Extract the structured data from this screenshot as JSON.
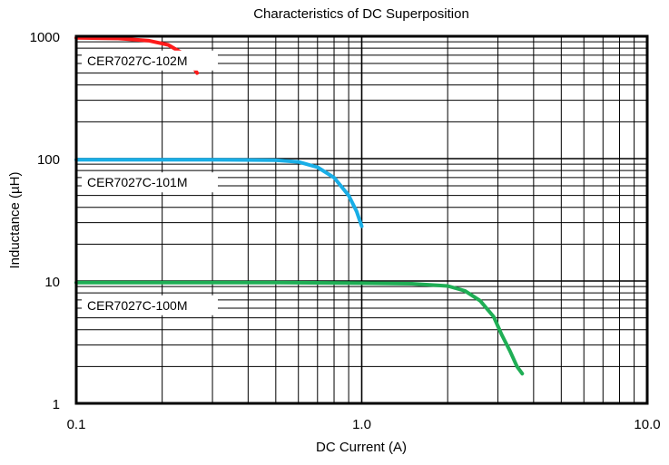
{
  "chart_data": {
    "type": "line",
    "title": "Characteristics of DC Superposition",
    "xlabel": "DC Current (A)",
    "ylabel": "Inductance (µH)",
    "x_scale": "log",
    "y_scale": "log",
    "xlim": [
      0.1,
      10.0
    ],
    "ylim": [
      1,
      1000
    ],
    "x_ticks": [
      {
        "value": 0.1,
        "label": "0.1"
      },
      {
        "value": 1.0,
        "label": "1.0"
      },
      {
        "value": 10.0,
        "label": "10.0"
      }
    ],
    "y_ticks": [
      {
        "value": 1,
        "label": "1"
      },
      {
        "value": 10,
        "label": "10"
      },
      {
        "value": 100,
        "label": "100"
      },
      {
        "value": 1000,
        "label": "1000"
      }
    ],
    "grid": true,
    "series": [
      {
        "name": "CER7027C-102M",
        "color": "#ff1a1a",
        "points": [
          [
            0.1,
            970
          ],
          [
            0.14,
            960
          ],
          [
            0.18,
            920
          ],
          [
            0.21,
            850
          ],
          [
            0.235,
            730
          ],
          [
            0.25,
            620
          ],
          [
            0.265,
            500
          ]
        ]
      },
      {
        "name": "CER7027C-101M",
        "color": "#19aee6",
        "points": [
          [
            0.1,
            98
          ],
          [
            0.3,
            98
          ],
          [
            0.5,
            97
          ],
          [
            0.6,
            94
          ],
          [
            0.7,
            85
          ],
          [
            0.8,
            70
          ],
          [
            0.9,
            50
          ],
          [
            0.96,
            37
          ],
          [
            1.0,
            28
          ]
        ]
      },
      {
        "name": "CER7027C-100M",
        "color": "#1fae55",
        "points": [
          [
            0.1,
            9.7
          ],
          [
            0.5,
            9.7
          ],
          [
            1.0,
            9.6
          ],
          [
            1.5,
            9.5
          ],
          [
            2.0,
            9.1
          ],
          [
            2.3,
            8.3
          ],
          [
            2.6,
            6.9
          ],
          [
            2.9,
            5.1
          ],
          [
            3.1,
            3.6
          ],
          [
            3.3,
            2.7
          ],
          [
            3.5,
            2.0
          ],
          [
            3.65,
            1.75
          ]
        ]
      }
    ]
  }
}
